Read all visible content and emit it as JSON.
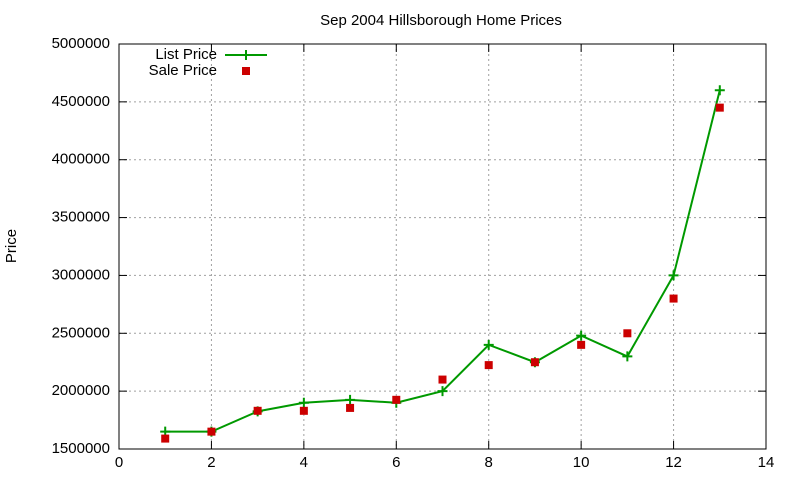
{
  "chart_data": {
    "type": "line",
    "title": "Sep 2004 Hillsborough Home Prices",
    "y_label": "Price",
    "x": [
      1,
      2,
      3,
      4,
      5,
      6,
      7,
      8,
      9,
      10,
      11,
      12,
      13
    ],
    "series": [
      {
        "name": "List Price",
        "color": "#009900",
        "mode": "linespoints",
        "values": [
          1650000,
          1650000,
          1825000,
          1900000,
          1925000,
          1900000,
          2000000,
          2400000,
          2250000,
          2480000,
          2300000,
          3000000,
          4600000
        ]
      },
      {
        "name": "Sale Price",
        "color": "#cc0000",
        "mode": "points",
        "values": [
          1590000,
          1650000,
          1830000,
          1830000,
          1855000,
          1925000,
          2100000,
          2225000,
          2250000,
          2400000,
          2500000,
          2800000,
          4450000
        ]
      }
    ],
    "xlim": [
      0,
      14
    ],
    "xticks": [
      0,
      2,
      4,
      6,
      8,
      10,
      12,
      14
    ],
    "ylim": [
      1500000,
      5000000
    ],
    "yticks": [
      1500000,
      2000000,
      2500000,
      3000000,
      3500000,
      4000000,
      4500000,
      5000000
    ],
    "grid": true,
    "legend": "top-left"
  }
}
